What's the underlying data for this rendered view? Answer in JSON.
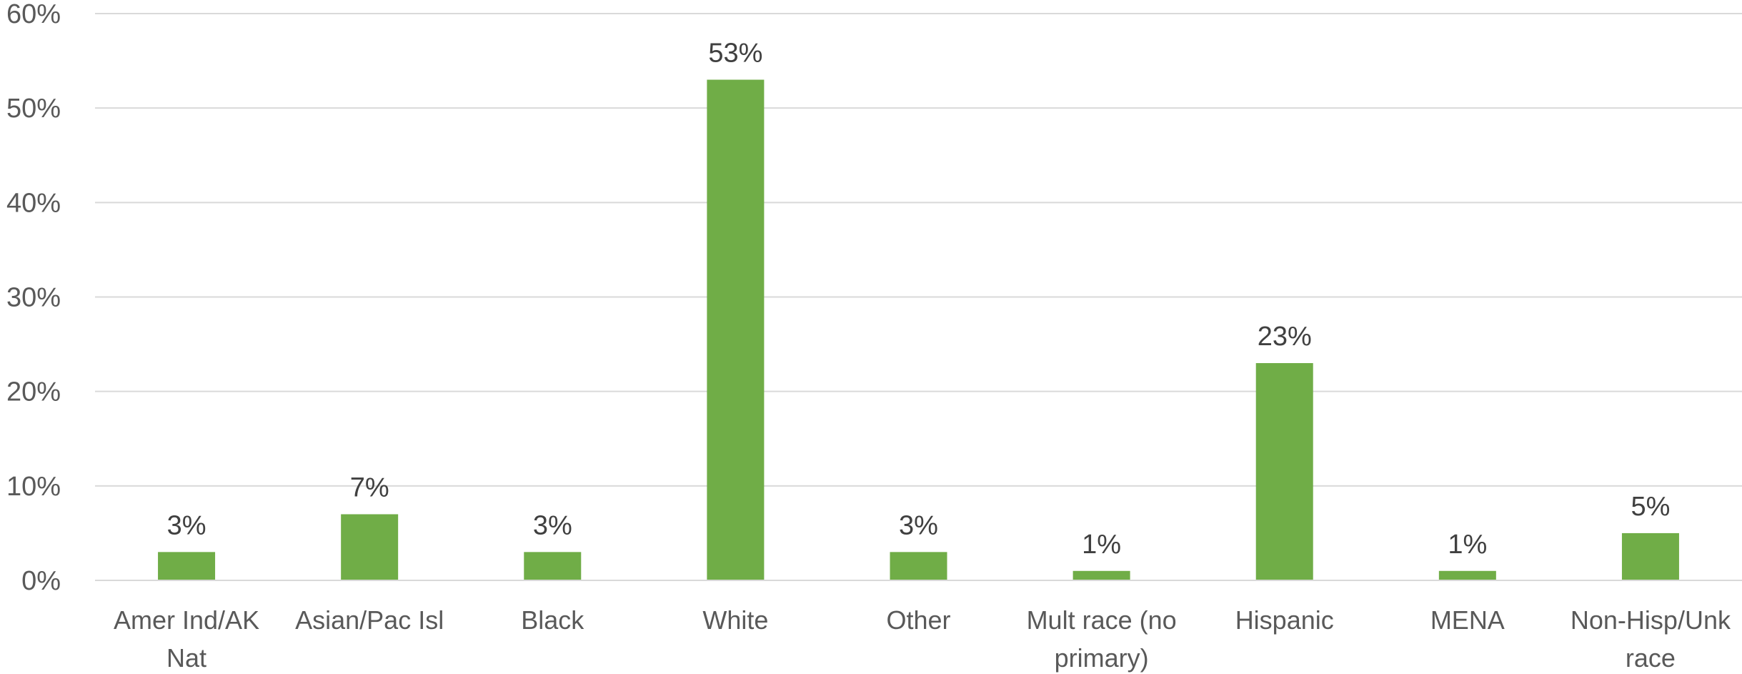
{
  "chart_data": {
    "type": "bar",
    "title": "",
    "xlabel": "",
    "ylabel": "",
    "categories": [
      [
        "Amer Ind/AK",
        "Nat"
      ],
      [
        "Asian/Pac Isl"
      ],
      [
        "Black"
      ],
      [
        "White"
      ],
      [
        "Other"
      ],
      [
        "Mult race (no",
        "primary)"
      ],
      [
        "Hispanic"
      ],
      [
        "MENA"
      ],
      [
        "Non-Hisp/Unk",
        "race"
      ]
    ],
    "values": [
      3,
      7,
      3,
      53,
      3,
      1,
      23,
      1,
      5
    ],
    "data_labels": [
      "3%",
      "7%",
      "3%",
      "53%",
      "3%",
      "1%",
      "23%",
      "1%",
      "5%"
    ],
    "ylim": [
      0,
      60
    ],
    "yticks": [
      0,
      10,
      20,
      30,
      40,
      50,
      60
    ],
    "ytick_labels": [
      "0%",
      "10%",
      "20%",
      "30%",
      "40%",
      "50%",
      "60%"
    ],
    "grid": true,
    "legend": "none",
    "bar_color": "#70ad47"
  }
}
